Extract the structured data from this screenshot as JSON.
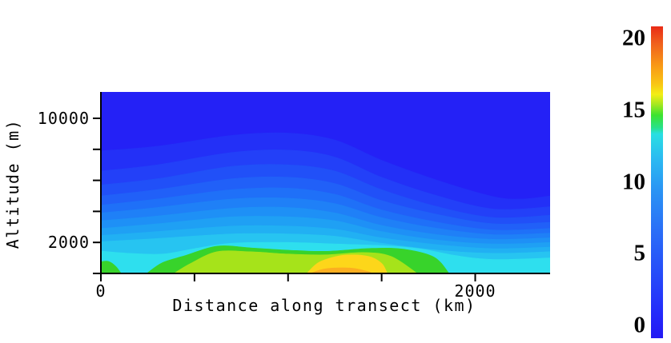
{
  "axes": {
    "x_label": "Distance along transect (km)",
    "y_label": "Altitude (m)",
    "x_ticks_km": [
      0,
      500,
      1000,
      1500,
      2000
    ],
    "x_tick_labels": [
      {
        "value": 0,
        "label": "0"
      },
      {
        "value": 2000,
        "label": "2000"
      }
    ],
    "y_ticks_m": [
      0,
      2000,
      4000,
      6000,
      8000,
      10000
    ],
    "y_tick_labels": [
      {
        "value": 2000,
        "label": "2000"
      },
      {
        "value": 10000,
        "label": "10000"
      }
    ]
  },
  "chart_data": {
    "type": "heatmap",
    "subtype": "filled-contour-transect",
    "xlabel": "Distance along transect (km)",
    "ylabel": "Altitude (m)",
    "x_range_km": [
      0,
      2400
    ],
    "y_range_m": [
      0,
      11700
    ],
    "grid": false,
    "base_band": {
      "value": 3,
      "color": "#2421f6"
    },
    "bands": [
      {
        "value": 4,
        "color": "#2330f7",
        "points": [
          [
            0,
            7900
          ],
          [
            300,
            8200
          ],
          [
            700,
            8900
          ],
          [
            1000,
            9050
          ],
          [
            1250,
            8600
          ],
          [
            1500,
            7300
          ],
          [
            1800,
            6000
          ],
          [
            2100,
            4950
          ],
          [
            2250,
            4800
          ],
          [
            2400,
            5000
          ]
        ]
      },
      {
        "value": 5,
        "color": "#2340f8",
        "points": [
          [
            0,
            6600
          ],
          [
            300,
            7000
          ],
          [
            700,
            7800
          ],
          [
            1000,
            7950
          ],
          [
            1250,
            7500
          ],
          [
            1500,
            6200
          ],
          [
            1800,
            5000
          ],
          [
            2100,
            4150
          ],
          [
            2400,
            4300
          ]
        ]
      },
      {
        "value": 6,
        "color": "#2150f8",
        "points": [
          [
            0,
            5700
          ],
          [
            300,
            6100
          ],
          [
            700,
            6900
          ],
          [
            1000,
            7000
          ],
          [
            1250,
            6600
          ],
          [
            1500,
            5400
          ],
          [
            1800,
            4300
          ],
          [
            2100,
            3600
          ],
          [
            2400,
            3750
          ]
        ]
      },
      {
        "value": 7,
        "color": "#2160f8",
        "points": [
          [
            0,
            5000
          ],
          [
            300,
            5400
          ],
          [
            700,
            6100
          ],
          [
            1000,
            6200
          ],
          [
            1250,
            5800
          ],
          [
            1500,
            4700
          ],
          [
            1800,
            3800
          ],
          [
            2100,
            3200
          ],
          [
            2400,
            3300
          ]
        ]
      },
      {
        "value": 8,
        "color": "#1f70f8",
        "points": [
          [
            0,
            4400
          ],
          [
            300,
            4800
          ],
          [
            700,
            5400
          ],
          [
            1000,
            5500
          ],
          [
            1250,
            5100
          ],
          [
            1500,
            4100
          ],
          [
            1800,
            3300
          ],
          [
            2100,
            2800
          ],
          [
            2400,
            2900
          ]
        ]
      },
      {
        "value": 9,
        "color": "#1f80f7",
        "points": [
          [
            0,
            3900
          ],
          [
            300,
            4250
          ],
          [
            700,
            4800
          ],
          [
            1000,
            4850
          ],
          [
            1250,
            4500
          ],
          [
            1500,
            3600
          ],
          [
            1800,
            2900
          ],
          [
            2100,
            2500
          ],
          [
            2400,
            2600
          ]
        ]
      },
      {
        "value": 10,
        "color": "#1e90f6",
        "points": [
          [
            0,
            3400
          ],
          [
            300,
            3700
          ],
          [
            700,
            4200
          ],
          [
            1000,
            4250
          ],
          [
            1250,
            3900
          ],
          [
            1500,
            3100
          ],
          [
            1800,
            2500
          ],
          [
            2100,
            2200
          ],
          [
            2400,
            2300
          ]
        ]
      },
      {
        "value": 11,
        "color": "#1fa0f4",
        "points": [
          [
            0,
            2900
          ],
          [
            300,
            3200
          ],
          [
            700,
            3650
          ],
          [
            1000,
            3650
          ],
          [
            1250,
            3400
          ],
          [
            1500,
            2700
          ],
          [
            1800,
            2150
          ],
          [
            2100,
            1900
          ],
          [
            2400,
            2000
          ]
        ]
      },
      {
        "value": 12,
        "color": "#21b0f3",
        "points": [
          [
            0,
            2450
          ],
          [
            300,
            2700
          ],
          [
            700,
            3050
          ],
          [
            1000,
            3050
          ],
          [
            1250,
            2850
          ],
          [
            1500,
            2300
          ],
          [
            1800,
            1850
          ],
          [
            2100,
            1600
          ],
          [
            2400,
            1700
          ]
        ]
      },
      {
        "value": 13,
        "color": "#27c4f1",
        "points": [
          [
            0,
            2050
          ],
          [
            300,
            2250
          ],
          [
            700,
            2550
          ],
          [
            1000,
            2550
          ],
          [
            1250,
            2400
          ],
          [
            1500,
            1950
          ],
          [
            1800,
            1500
          ],
          [
            2100,
            1300
          ],
          [
            2400,
            1400
          ]
        ]
      },
      {
        "value": 14,
        "color": "#2edfee",
        "points": [
          [
            0,
            1450
          ],
          [
            150,
            1300
          ],
          [
            330,
            1250
          ],
          [
            500,
            1600
          ],
          [
            700,
            1950
          ],
          [
            1000,
            2000
          ],
          [
            1250,
            1900
          ],
          [
            1500,
            1800
          ],
          [
            1700,
            1600
          ],
          [
            1900,
            1150
          ],
          [
            2100,
            900
          ],
          [
            2400,
            1000
          ]
        ]
      },
      {
        "value": 15,
        "color": "#38d32b",
        "points": [
          [
            0,
            750
          ],
          [
            40,
            780
          ],
          [
            80,
            450
          ],
          [
            108,
            0
          ]
        ]
      },
      {
        "value": 15,
        "color": "#38d32b",
        "points": [
          [
            245,
            0
          ],
          [
            330,
            700
          ],
          [
            450,
            1150
          ],
          [
            620,
            1760
          ],
          [
            800,
            1650
          ],
          [
            1000,
            1500
          ],
          [
            1200,
            1430
          ],
          [
            1450,
            1620
          ],
          [
            1620,
            1560
          ],
          [
            1780,
            1050
          ],
          [
            1860,
            0
          ]
        ]
      },
      {
        "value": 16,
        "color": "#a6e31a",
        "points": [
          [
            390,
            0
          ],
          [
            480,
            650
          ],
          [
            620,
            1400
          ],
          [
            800,
            1400
          ],
          [
            1000,
            1250
          ],
          [
            1200,
            1200
          ],
          [
            1400,
            1350
          ],
          [
            1550,
            1100
          ],
          [
            1690,
            0
          ]
        ]
      },
      {
        "value": 17,
        "color": "#fdd61a",
        "points": [
          [
            1100,
            0
          ],
          [
            1170,
            750
          ],
          [
            1300,
            1180
          ],
          [
            1430,
            1100
          ],
          [
            1500,
            650
          ],
          [
            1530,
            0
          ]
        ]
      },
      {
        "value": 18,
        "color": "#fcae20",
        "points": [
          [
            1120,
            0
          ],
          [
            1200,
            300
          ],
          [
            1330,
            350
          ],
          [
            1420,
            150
          ],
          [
            1450,
            0
          ]
        ]
      }
    ],
    "colorbar": {
      "min": 0,
      "max": 20,
      "tick_labels": [
        "20",
        "15",
        "10",
        "5",
        "0"
      ],
      "tick_values": [
        20,
        15,
        10,
        5,
        0
      ],
      "gradient_top_to_bottom": [
        [
          0.0,
          "#e92b16"
        ],
        [
          0.055,
          "#f0611d"
        ],
        [
          0.13,
          "#f99c16"
        ],
        [
          0.185,
          "#f9c614"
        ],
        [
          0.218,
          "#f3ee15"
        ],
        [
          0.248,
          "#abe81f"
        ],
        [
          0.285,
          "#3ce32f"
        ],
        [
          0.325,
          "#28e18a"
        ],
        [
          0.345,
          "#29dfe2"
        ],
        [
          0.42,
          "#2bbcf1"
        ],
        [
          0.52,
          "#2a96f4"
        ],
        [
          0.65,
          "#2a70f7"
        ],
        [
          0.8,
          "#264af9"
        ],
        [
          0.93,
          "#2428fa"
        ],
        [
          1.0,
          "#2319f3"
        ]
      ]
    },
    "axis_color": "#000000"
  }
}
